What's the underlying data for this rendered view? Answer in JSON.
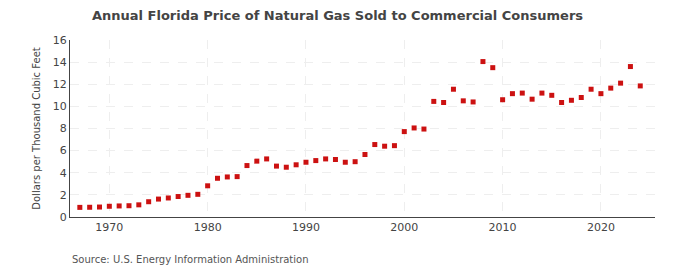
{
  "chart_data": {
    "type": "scatter",
    "title": "Annual Florida Price of Natural Gas Sold to Commercial Consumers",
    "ylabel": "Dollars per Thousand Cubic Feet",
    "annotations": [
      "Source: U.S. Energy Information Administration"
    ],
    "x": [
      1967,
      1968,
      1969,
      1970,
      1971,
      1972,
      1973,
      1974,
      1975,
      1976,
      1977,
      1978,
      1979,
      1980,
      1981,
      1982,
      1983,
      1984,
      1985,
      1986,
      1987,
      1988,
      1989,
      1990,
      1991,
      1992,
      1993,
      1994,
      1995,
      1996,
      1997,
      1998,
      1999,
      2000,
      2001,
      2002,
      2003,
      2004,
      2005,
      2006,
      2007,
      2008,
      2009,
      2010,
      2011,
      2012,
      2013,
      2014,
      2015,
      2016,
      2017,
      2018,
      2019,
      2020,
      2021,
      2022,
      2023,
      2024
    ],
    "values": [
      0.87,
      0.88,
      0.9,
      0.97,
      1.0,
      1.02,
      1.1,
      1.38,
      1.62,
      1.72,
      1.85,
      1.96,
      2.05,
      2.82,
      3.5,
      3.62,
      3.65,
      4.65,
      5.05,
      5.25,
      4.6,
      4.5,
      4.72,
      4.95,
      5.1,
      5.25,
      5.2,
      4.95,
      5.0,
      5.65,
      6.55,
      6.4,
      6.45,
      7.72,
      8.05,
      7.95,
      10.45,
      10.35,
      11.55,
      10.5,
      10.4,
      14.05,
      13.5,
      10.6,
      11.15,
      11.2,
      10.65,
      11.2,
      11.0,
      10.35,
      10.55,
      10.8,
      11.55,
      11.15,
      11.65,
      12.1,
      13.6,
      11.85
    ],
    "color": "#cc1111",
    "marker": "square",
    "xlim": [
      1966.0,
      2025.5
    ],
    "xticks": [
      1970,
      1980,
      1990,
      2000,
      2010,
      2020
    ],
    "ylim": [
      0,
      16
    ],
    "yticks": [
      0,
      2,
      4,
      6,
      8,
      10,
      12,
      14,
      16
    ],
    "grid": true
  }
}
